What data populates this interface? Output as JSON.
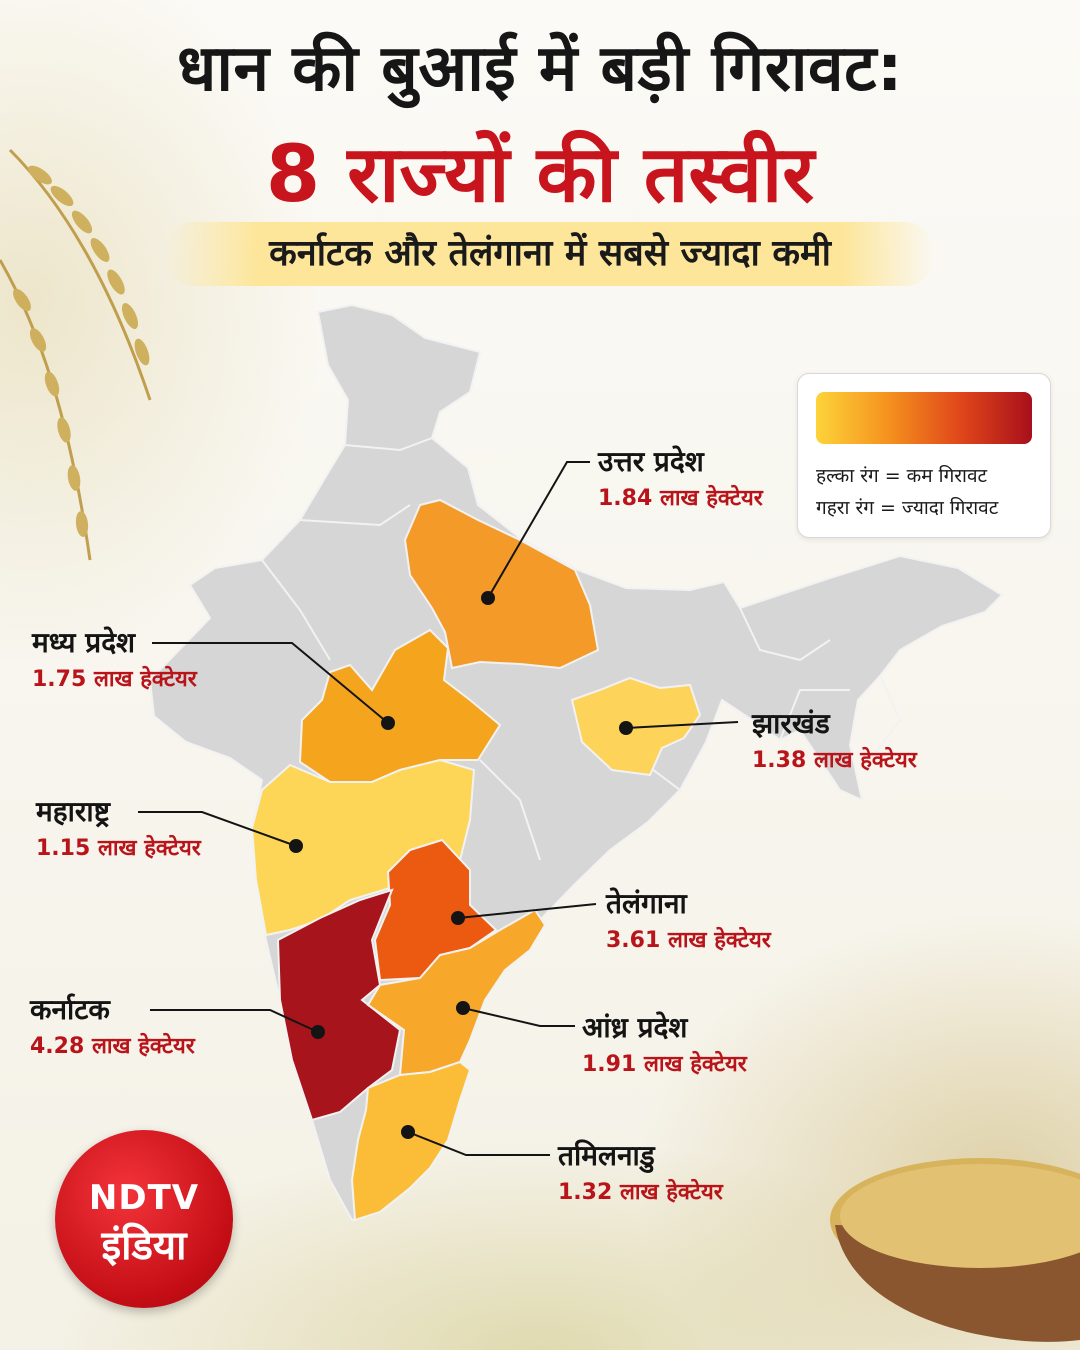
{
  "header": {
    "title_line1": "धान की बुआई में बड़ी गिरावट:",
    "title_line2": "8 राज्यों की तस्वीर",
    "subtitle": "कर्नाटक और तेलंगाना में सबसे ज्यादा कमी"
  },
  "legend": {
    "gradient_colors": [
      "#fdd33a",
      "#f5921e",
      "#e0471a",
      "#a8101b"
    ],
    "light_text": "हल्का रंग = कम गिरावट",
    "dark_text": "गहरा रंग = ज्यादा गिरावट"
  },
  "colors": {
    "base_map": "#d6d6d6",
    "border": "#f2f2f2",
    "karnataka": "#a8141b",
    "telangana": "#ec5a12",
    "andhra_pradesh": "#f7a72a",
    "tamil_nadu": "#fbbd38",
    "maharashtra": "#fdd658",
    "madhya_pradesh": "#f5a41e",
    "uttar_pradesh": "#f49a28",
    "jharkhand": "#fdd35a"
  },
  "states": [
    {
      "id": "uttar-pradesh",
      "name": "उत्तर प्रदेश",
      "value": "1.84 लाख हेक्टेयर"
    },
    {
      "id": "madhya-pradesh",
      "name": "मध्य प्रदेश",
      "value": "1.75 लाख हेक्टेयर"
    },
    {
      "id": "jharkhand",
      "name": "झारखंड",
      "value": "1.38 लाख हेक्टेयर"
    },
    {
      "id": "maharashtra",
      "name": "महाराष्ट्र",
      "value": "1.15 लाख हेक्टेयर"
    },
    {
      "id": "telangana",
      "name": "तेलंगाना",
      "value": "3.61 लाख हेक्टेयर"
    },
    {
      "id": "karnataka",
      "name": "कर्नाटक",
      "value": "4.28 लाख हेक्टेयर"
    },
    {
      "id": "andhra-pradesh",
      "name": "आंध्र प्रदेश",
      "value": "1.91 लाख हेक्टेयर"
    },
    {
      "id": "tamil-nadu",
      "name": "तमिलनाडु",
      "value": "1.32 लाख हेक्टेयर"
    }
  ],
  "logo": {
    "top": "NDTV",
    "bottom": "इंडिया"
  }
}
